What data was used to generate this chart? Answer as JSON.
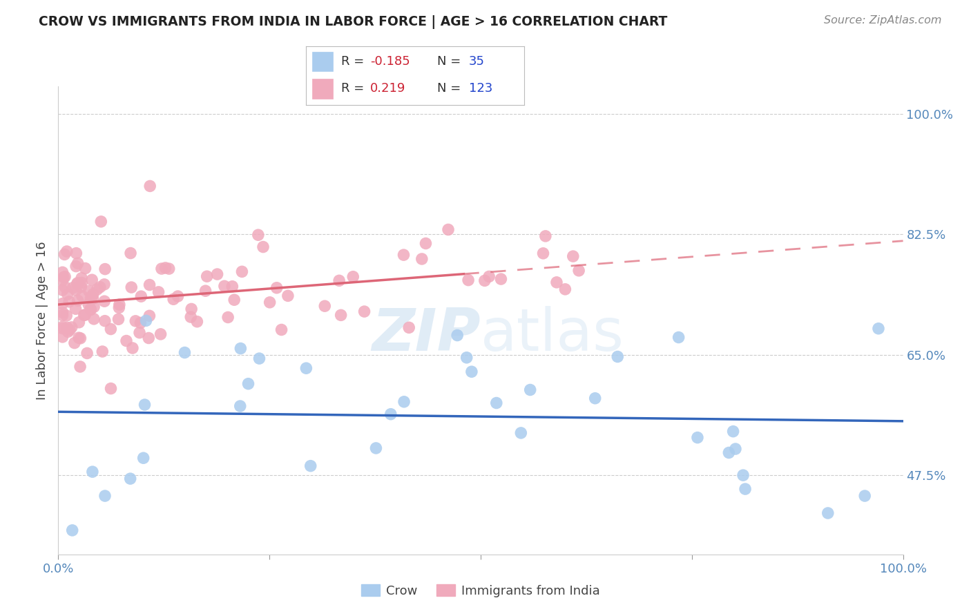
{
  "title": "CROW VS IMMIGRANTS FROM INDIA IN LABOR FORCE | AGE > 16 CORRELATION CHART",
  "source": "Source: ZipAtlas.com",
  "ylabel": "In Labor Force | Age > 16",
  "xlim": [
    0.0,
    1.0
  ],
  "ylim": [
    0.36,
    1.04
  ],
  "yticks": [
    0.475,
    0.65,
    0.825,
    1.0
  ],
  "ytick_labels": [
    "47.5%",
    "65.0%",
    "82.5%",
    "100.0%"
  ],
  "blue_color": "#aaccee",
  "pink_color": "#f0aabc",
  "blue_line_color": "#3366bb",
  "pink_line_color": "#dd6677",
  "background_color": "#ffffff",
  "grid_color": "#cccccc",
  "R_crow": -0.185,
  "N_crow": 35,
  "R_india": 0.219,
  "N_india": 123,
  "legend_box_color": "#aaaaaa",
  "title_color": "#222222",
  "source_color": "#888888",
  "tick_color": "#5588bb",
  "watermark_color": "#c8ddf0"
}
